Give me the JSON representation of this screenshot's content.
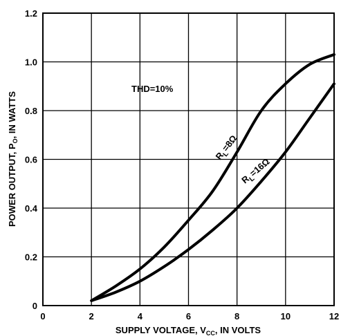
{
  "chart_data": {
    "type": "line",
    "xlabel": "SUPPLY VOLTAGE, V",
    "xlabel_sub": "CC",
    "xlabel_suffix": ", IN VOLTS",
    "ylabel": "POWER OUTPUT, P",
    "ylabel_sub": "O",
    "ylabel_suffix": ", IN WATTS",
    "xlim": [
      0,
      12
    ],
    "ylim": [
      0,
      1.2
    ],
    "grid": true,
    "x_ticks": [
      "0",
      "2",
      "4",
      "6",
      "8",
      "10",
      "12"
    ],
    "y_ticks": [
      "0",
      "0.2",
      "0.4",
      "0.6",
      "0.8",
      "1.0",
      "1.2"
    ],
    "annotations": [
      {
        "text": "THD=10%"
      }
    ],
    "series": [
      {
        "name": "RL=8Ω",
        "label_main": "R",
        "label_sub": "L",
        "label_rest": "=8Ω",
        "x": [
          2,
          3,
          4,
          5,
          6,
          7,
          8,
          9,
          10,
          11,
          12
        ],
        "y": [
          0.02,
          0.08,
          0.15,
          0.24,
          0.35,
          0.47,
          0.63,
          0.8,
          0.91,
          0.99,
          1.03
        ]
      },
      {
        "name": "RL=16Ω",
        "label_main": "R",
        "label_sub": "L",
        "label_rest": "=16Ω",
        "x": [
          2,
          3,
          4,
          5,
          6,
          7,
          8,
          9,
          10,
          11,
          12
        ],
        "y": [
          0.02,
          0.055,
          0.1,
          0.16,
          0.23,
          0.31,
          0.4,
          0.51,
          0.63,
          0.77,
          0.91
        ]
      }
    ]
  }
}
